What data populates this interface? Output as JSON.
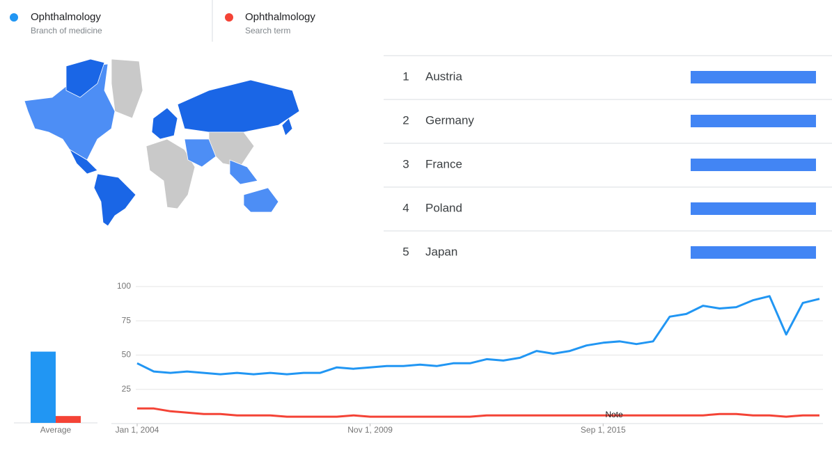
{
  "regions": {
    "color": "#4285f4",
    "rows": [
      {
        "rank": 1,
        "name": "Austria",
        "value": 100
      },
      {
        "rank": 2,
        "name": "Germany",
        "value": 100
      },
      {
        "rank": 3,
        "name": "France",
        "value": 100
      },
      {
        "rank": 4,
        "name": "Poland",
        "value": 100
      },
      {
        "rank": 5,
        "name": "Japan",
        "value": 100
      }
    ]
  },
  "chart_data": [
    {
      "type": "bar",
      "categories": [
        "Average"
      ],
      "ylim": [
        0,
        100
      ],
      "series": [
        {
          "color": "#2196f3",
          "values": [
            52
          ]
        },
        {
          "color": "#f44336",
          "values": [
            5
          ]
        }
      ]
    },
    {
      "type": "line",
      "annotation": "Note",
      "ylim": [
        0,
        100
      ],
      "yticks": [
        25,
        50,
        75,
        100
      ],
      "grid": true,
      "categories": [
        "Jan 1, 2004",
        null,
        null,
        null,
        null,
        null,
        null,
        null,
        null,
        null,
        null,
        null,
        null,
        null,
        "Nov 1, 2009",
        null,
        null,
        null,
        null,
        null,
        null,
        null,
        null,
        null,
        null,
        null,
        null,
        null,
        "Sep 1, 2015",
        null,
        null,
        null,
        null,
        null,
        null,
        null,
        null,
        null,
        null,
        null,
        null,
        null
      ],
      "series": [
        {
          "name": "Ophthalmology",
          "subtitle": "Branch of medicine",
          "color": "#2196f3",
          "values": [
            44,
            38,
            37,
            38,
            37,
            36,
            37,
            36,
            37,
            36,
            37,
            37,
            41,
            40,
            41,
            42,
            42,
            43,
            42,
            44,
            44,
            47,
            46,
            48,
            53,
            51,
            53,
            57,
            59,
            60,
            58,
            60,
            78,
            80,
            86,
            84,
            85,
            90,
            93,
            65,
            88,
            91
          ]
        },
        {
          "name": "Ophthalmology",
          "subtitle": "Search term",
          "color": "#f44336",
          "values": [
            11,
            11,
            9,
            8,
            7,
            7,
            6,
            6,
            6,
            5,
            5,
            5,
            5,
            6,
            5,
            5,
            5,
            5,
            5,
            5,
            5,
            6,
            6,
            6,
            6,
            6,
            6,
            6,
            6,
            6,
            6,
            6,
            6,
            6,
            6,
            7,
            7,
            6,
            6,
            5,
            6,
            6
          ]
        }
      ]
    }
  ]
}
